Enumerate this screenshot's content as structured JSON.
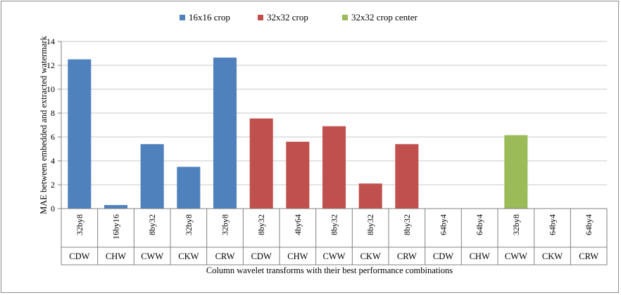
{
  "chart_data": {
    "type": "bar",
    "title": "",
    "xlabel": "Column wavelet transforms with their best performance combinations",
    "ylabel": "MAE between embedded and extracted watermark",
    "ylim": [
      0,
      14
    ],
    "yticks": [
      0,
      2,
      4,
      6,
      8,
      10,
      12,
      14
    ],
    "grid": "horizontal",
    "legend_position": "top",
    "legend": [
      {
        "name": "16x16 crop",
        "color": "#4f81bd"
      },
      {
        "name": "32x32 crop",
        "color": "#c0504d"
      },
      {
        "name": "32x32 crop center",
        "color": "#9bbb59"
      }
    ],
    "categories": [
      {
        "combo": "32by8",
        "transform": "CDW"
      },
      {
        "combo": "16by16",
        "transform": "CHW"
      },
      {
        "combo": "8by32",
        "transform": "CWW"
      },
      {
        "combo": "32by8",
        "transform": "CKW"
      },
      {
        "combo": "32by8",
        "transform": "CRW"
      },
      {
        "combo": "8by32",
        "transform": "CDW"
      },
      {
        "combo": "4by64",
        "transform": "CHW"
      },
      {
        "combo": "8by32",
        "transform": "CWW"
      },
      {
        "combo": "8by32",
        "transform": "CKW"
      },
      {
        "combo": "8by32",
        "transform": "CRW"
      },
      {
        "combo": "64by4",
        "transform": "CDW"
      },
      {
        "combo": "64by4",
        "transform": "CHW"
      },
      {
        "combo": "32by8",
        "transform": "CWW"
      },
      {
        "combo": "64by4",
        "transform": "CKW"
      },
      {
        "combo": "64by4",
        "transform": "CRW"
      }
    ],
    "bars": [
      {
        "series": 0,
        "value": 12.5
      },
      {
        "series": 0,
        "value": 0.3
      },
      {
        "series": 0,
        "value": 5.4
      },
      {
        "series": 0,
        "value": 3.5
      },
      {
        "series": 0,
        "value": 12.65
      },
      {
        "series": 1,
        "value": 7.55
      },
      {
        "series": 1,
        "value": 5.6
      },
      {
        "series": 1,
        "value": 6.9
      },
      {
        "series": 1,
        "value": 2.1
      },
      {
        "series": 1,
        "value": 5.4
      },
      {
        "series": 1,
        "value": 0
      },
      {
        "series": 1,
        "value": 0
      },
      {
        "series": 2,
        "value": 6.15
      },
      {
        "series": 2,
        "value": 0
      },
      {
        "series": 2,
        "value": 0
      }
    ]
  }
}
